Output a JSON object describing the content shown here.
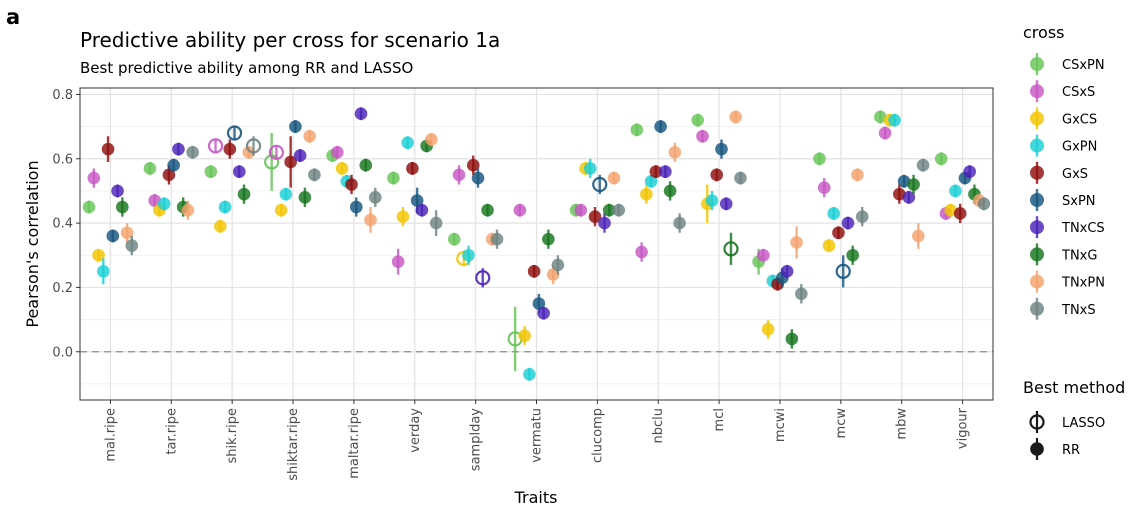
{
  "panel_label": "a",
  "chart_data": {
    "type": "scatter",
    "title": "Predictive ability per cross for scenario 1a",
    "subtitle": "Best predictive ability among RR and LASSO",
    "xlabel": "Traits",
    "ylabel": "Pearson's correlation",
    "ylim": [
      -0.15,
      0.82
    ],
    "yticks": [
      0.0,
      0.2,
      0.4,
      0.6,
      0.8
    ],
    "ytick_labels": [
      "0.0",
      "0.2",
      "0.4",
      "0.6",
      "0.8"
    ],
    "reference_line": 0,
    "grid": true,
    "legend_position": "right",
    "categories": [
      "mal.ripe",
      "tar.ripe",
      "shik.ripe",
      "shiktar.ripe",
      "maltar.ripe",
      "verday",
      "samplday",
      "vermatu",
      "clucomp",
      "nbclu",
      "mcl",
      "mcwi",
      "mcw",
      "mbw",
      "vigour"
    ],
    "color_legend": {
      "title": "cross",
      "entries": [
        {
          "name": "CSxPN",
          "color": "#66C457"
        },
        {
          "name": "CSxS",
          "color": "#C757C4"
        },
        {
          "name": "GxCS",
          "color": "#F2C500"
        },
        {
          "name": "GxPN",
          "color": "#1BCFD6"
        },
        {
          "name": "GxS",
          "color": "#8F0D0D"
        },
        {
          "name": "SxPN",
          "color": "#16567F"
        },
        {
          "name": "TNxCS",
          "color": "#4C22B8"
        },
        {
          "name": "TNxG",
          "color": "#17751F"
        },
        {
          "name": "TNxPN",
          "color": "#F4A26E"
        },
        {
          "name": "TNxS",
          "color": "#6E8383"
        }
      ]
    },
    "method_legend": {
      "title": "Best method",
      "entries": [
        {
          "name": "LASSO",
          "style": "open-circle"
        },
        {
          "name": "RR",
          "style": "filled-circle"
        }
      ]
    },
    "series": [
      {
        "name": "CSxPN",
        "values": [
          0.45,
          0.57,
          0.56,
          0.59,
          0.61,
          0.54,
          0.35,
          0.04,
          0.44,
          0.69,
          0.72,
          0.28,
          0.6,
          0.73,
          0.6
        ],
        "errors": [
          0.02,
          0.02,
          0.02,
          0.09,
          0.02,
          0.02,
          0.02,
          0.1,
          0.02,
          0.02,
          0.02,
          0.04,
          0.02,
          0.02,
          0.02
        ],
        "methods": [
          "RR",
          "RR",
          "RR",
          "LASSO",
          "RR",
          "RR",
          "RR",
          "LASSO",
          "RR",
          "RR",
          "RR",
          "RR",
          "RR",
          "RR",
          "RR"
        ]
      },
      {
        "name": "CSxS",
        "values": [
          0.54,
          0.47,
          0.64,
          0.62,
          0.62,
          0.28,
          0.55,
          0.44,
          0.44,
          0.31,
          0.67,
          0.3,
          0.51,
          0.68,
          0.43
        ],
        "errors": [
          0.03,
          0.02,
          0.02,
          0.02,
          0.02,
          0.04,
          0.03,
          0.02,
          0.02,
          0.03,
          0.02,
          0.02,
          0.03,
          0.02,
          0.02
        ],
        "methods": [
          "RR",
          "RR",
          "LASSO",
          "LASSO",
          "RR",
          "RR",
          "RR",
          "RR",
          "RR",
          "RR",
          "RR",
          "RR",
          "RR",
          "RR",
          "RR"
        ]
      },
      {
        "name": "GxCS",
        "values": [
          0.3,
          0.44,
          0.39,
          0.44,
          0.57,
          0.42,
          0.29,
          0.05,
          0.57,
          0.49,
          0.46,
          0.07,
          0.33,
          0.72,
          0.44
        ],
        "errors": [
          0.02,
          0.02,
          0.02,
          0.02,
          0.02,
          0.03,
          0.02,
          0.03,
          0.02,
          0.03,
          0.06,
          0.03,
          0.02,
          0.02,
          0.02
        ],
        "methods": [
          "RR",
          "RR",
          "RR",
          "RR",
          "RR",
          "RR",
          "LASSO",
          "RR",
          "RR",
          "RR",
          "RR",
          "RR",
          "RR",
          "RR",
          "RR"
        ]
      },
      {
        "name": "GxPN",
        "values": [
          0.25,
          0.46,
          0.45,
          0.49,
          0.53,
          0.65,
          0.3,
          -0.07,
          0.57,
          0.53,
          0.47,
          0.22,
          0.43,
          0.72,
          0.5
        ],
        "errors": [
          0.04,
          0.02,
          0.02,
          0.02,
          0.02,
          0.02,
          0.03,
          0.02,
          0.03,
          0.02,
          0.03,
          0.02,
          0.02,
          0.02,
          0.02
        ],
        "methods": [
          "RR",
          "RR",
          "RR",
          "RR",
          "RR",
          "RR",
          "RR",
          "RR",
          "RR",
          "RR",
          "RR",
          "RR",
          "RR",
          "RR",
          "RR"
        ]
      },
      {
        "name": "GxS",
        "values": [
          0.63,
          0.55,
          0.63,
          0.59,
          0.52,
          0.57,
          0.58,
          0.25,
          0.42,
          0.56,
          0.55,
          0.21,
          0.37,
          0.49,
          0.43
        ],
        "errors": [
          0.04,
          0.03,
          0.03,
          0.08,
          0.03,
          0.02,
          0.03,
          0.02,
          0.03,
          0.02,
          0.02,
          0.02,
          0.02,
          0.03,
          0.03
        ],
        "methods": [
          "RR",
          "RR",
          "RR",
          "RR",
          "RR",
          "RR",
          "RR",
          "RR",
          "RR",
          "RR",
          "RR",
          "RR",
          "RR",
          "RR",
          "RR"
        ]
      },
      {
        "name": "SxPN",
        "values": [
          0.36,
          0.58,
          0.68,
          0.7,
          0.45,
          0.47,
          0.54,
          0.15,
          0.52,
          0.7,
          0.63,
          0.23,
          0.25,
          0.53,
          0.54
        ],
        "errors": [
          0.02,
          0.02,
          0.02,
          0.02,
          0.03,
          0.04,
          0.03,
          0.03,
          0.03,
          0.02,
          0.03,
          0.03,
          0.05,
          0.02,
          0.02
        ],
        "methods": [
          "RR",
          "RR",
          "LASSO",
          "RR",
          "RR",
          "RR",
          "RR",
          "RR",
          "LASSO",
          "RR",
          "RR",
          "RR",
          "LASSO",
          "RR",
          "RR"
        ]
      },
      {
        "name": "TNxCS",
        "values": [
          0.5,
          0.63,
          0.56,
          0.61,
          0.74,
          0.44,
          0.23,
          0.12,
          0.4,
          0.56,
          0.46,
          0.25,
          0.4,
          0.48,
          0.56
        ],
        "errors": [
          0.02,
          0.02,
          0.02,
          0.02,
          0.02,
          0.02,
          0.03,
          0.02,
          0.03,
          0.02,
          0.02,
          0.02,
          0.02,
          0.02,
          0.02
        ],
        "methods": [
          "RR",
          "RR",
          "RR",
          "RR",
          "RR",
          "RR",
          "LASSO",
          "RR",
          "RR",
          "RR",
          "RR",
          "RR",
          "RR",
          "RR",
          "RR"
        ]
      },
      {
        "name": "TNxG",
        "values": [
          0.45,
          0.45,
          0.49,
          0.48,
          0.58,
          0.64,
          0.44,
          0.35,
          0.44,
          0.5,
          0.32,
          0.04,
          0.3,
          0.52,
          0.49
        ],
        "errors": [
          0.03,
          0.03,
          0.03,
          0.03,
          0.02,
          0.02,
          0.02,
          0.03,
          0.02,
          0.03,
          0.05,
          0.03,
          0.03,
          0.03,
          0.03
        ],
        "methods": [
          "RR",
          "RR",
          "RR",
          "RR",
          "RR",
          "RR",
          "RR",
          "RR",
          "RR",
          "RR",
          "LASSO",
          "RR",
          "RR",
          "RR",
          "RR"
        ]
      },
      {
        "name": "TNxPN",
        "values": [
          0.37,
          0.44,
          0.62,
          0.67,
          0.41,
          0.66,
          0.35,
          0.24,
          0.54,
          0.62,
          0.73,
          0.34,
          0.55,
          0.36,
          0.47
        ],
        "errors": [
          0.03,
          0.03,
          0.02,
          0.02,
          0.04,
          0.02,
          0.02,
          0.03,
          0.02,
          0.03,
          0.02,
          0.05,
          0.02,
          0.04,
          0.02
        ],
        "methods": [
          "RR",
          "RR",
          "RR",
          "RR",
          "RR",
          "RR",
          "RR",
          "RR",
          "RR",
          "RR",
          "RR",
          "RR",
          "RR",
          "RR",
          "RR"
        ]
      },
      {
        "name": "TNxS",
        "values": [
          0.33,
          0.62,
          0.64,
          0.55,
          0.48,
          0.4,
          0.35,
          0.27,
          0.44,
          0.4,
          0.54,
          0.18,
          0.42,
          0.58,
          0.46
        ],
        "errors": [
          0.03,
          0.02,
          0.03,
          0.02,
          0.03,
          0.04,
          0.03,
          0.03,
          0.02,
          0.03,
          0.02,
          0.03,
          0.03,
          0.02,
          0.02
        ],
        "methods": [
          "RR",
          "RR",
          "LASSO",
          "RR",
          "RR",
          "RR",
          "RR",
          "RR",
          "RR",
          "RR",
          "RR",
          "RR",
          "RR",
          "RR",
          "RR"
        ]
      }
    ]
  }
}
